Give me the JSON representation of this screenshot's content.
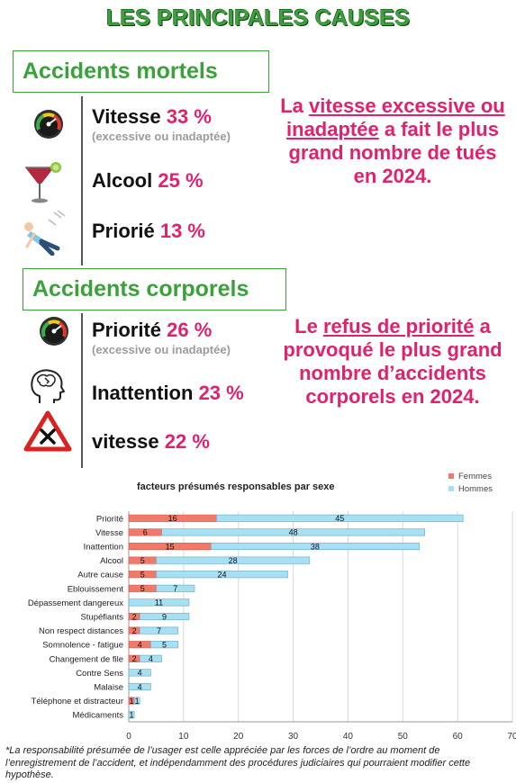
{
  "title": "LES PRINCIPALES CAUSES",
  "mortels": {
    "header": "Accidents mortels",
    "items": [
      {
        "label": "Vitesse",
        "pct": "33 %",
        "sub": "(excessive ou inadaptée)",
        "icon": "speedometer-icon"
      },
      {
        "label": "Alcool",
        "pct": "25 %",
        "sub": "",
        "icon": "cocktail-glass-icon"
      },
      {
        "label": "Priorié",
        "pct": "13 %",
        "sub": "",
        "icon": "pedestrian-hit-icon"
      }
    ],
    "callout": {
      "pre": "La ",
      "em": "vitesse excessive ou inadaptée",
      "post": " a fait le plus grand nombre de tués en 2024."
    }
  },
  "corporels": {
    "header": "Accidents corporels",
    "items": [
      {
        "label": "Priorité",
        "pct": "26 %",
        "sub": "(excessive ou inadaptée)",
        "icon": "speedometer-icon"
      },
      {
        "label": "Inattention",
        "pct": "23 %",
        "sub": "",
        "icon": "distracted-head-icon"
      },
      {
        "label": "vitesse",
        "pct": "22 %",
        "sub": "",
        "icon": "warning-triangle-icon"
      }
    ],
    "callout": {
      "pre": "Le ",
      "em": "refus de priorité",
      "post": " a provoqué le plus grand nombre d’accidents corporels en 2024."
    }
  },
  "chart_data": {
    "type": "bar",
    "stacked": true,
    "orientation": "horizontal",
    "title": "facteurs présumés responsables par sexe",
    "categories": [
      "Priorité",
      "Vitesse",
      "Inattention",
      "Alcool",
      "Autre cause",
      "Eblouissement",
      "Dépassement dangereux",
      "Stupéfiants",
      "Non respect distances",
      "Somnolence - fatigue",
      "Changement de file",
      "Contre Sens",
      "Malaise",
      "Téléphone et distracteur",
      "Médicaments"
    ],
    "series": [
      {
        "name": "Femmes",
        "color": "#f0796a",
        "values": [
          16,
          6,
          15,
          5,
          5,
          5,
          0,
          2,
          2,
          4,
          2,
          0,
          0,
          1,
          0
        ],
        "labels": [
          "16",
          "6",
          "15",
          "5",
          "5",
          "5",
          "",
          "2",
          "2",
          "4",
          "2",
          "",
          "",
          "1",
          ""
        ]
      },
      {
        "name": "Hommes",
        "color": "#a8dff3",
        "values": [
          45,
          48,
          38,
          28,
          24,
          7,
          11,
          9,
          7,
          5,
          4,
          4,
          4,
          1,
          1
        ],
        "labels": [
          "45",
          "48",
          "38",
          "28",
          "24",
          "7",
          "11",
          "9",
          "7",
          "5",
          "4",
          "4",
          "4",
          "1",
          "1"
        ]
      }
    ],
    "xlim": [
      0,
      70
    ],
    "xticks": [
      "0",
      "10",
      "20",
      "30",
      "40",
      "50",
      "60",
      "70"
    ],
    "grid": true,
    "legend": "top-right"
  },
  "footnote": "*La responsabilité présumée de l’usager est celle appréciée par les forces de l’ordre au moment de l’enregistrement de l’accident, et indépendamment des procédures judiciaires qui pourraient modifier cette hypothèse."
}
